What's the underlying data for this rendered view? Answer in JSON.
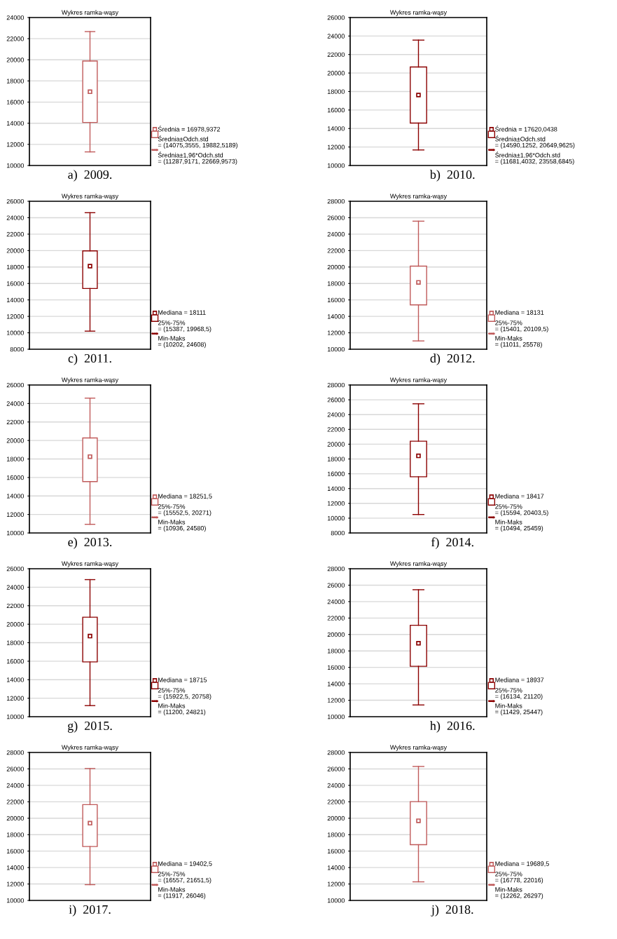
{
  "chart_data": [
    {
      "type": "box",
      "title": "Wykres ramka-wąsy",
      "categories": [
        null
      ],
      "color": "#c05a5a",
      "boxes": [
        {
          "low": 11287.9171,
          "q1": 14075.3555,
          "mean": 16978.9372,
          "q3": 19882.5189,
          "high": 22669.9573
        }
      ],
      "ylim": [
        10000,
        24000
      ],
      "yticks": [
        10000,
        12000,
        14000,
        16000,
        18000,
        20000,
        22000,
        24000
      ],
      "grid": "y",
      "tick_labels": "y",
      "annotations": [
        "Średnia = 16978,9372",
        "Średnia±Odch.std\n= (14075,3555, 19882,5189)",
        "Średnia±1,96*Odch.std\n= (11287,9171, 22669,9573)",
        "a)  2009."
      ]
    },
    {
      "type": "box",
      "title": "Wykres ramka-wąsy",
      "categories": [
        null
      ],
      "color": "#8b0000",
      "boxes": [
        {
          "low": 11681.4032,
          "q1": 14590.1252,
          "mean": 17620.0438,
          "q3": 20649.9625,
          "high": 23558.6845
        }
      ],
      "ylim": [
        10000,
        26000
      ],
      "yticks": [
        10000,
        12000,
        14000,
        16000,
        18000,
        20000,
        22000,
        24000,
        26000
      ],
      "grid": "y",
      "tick_labels": "y",
      "annotations": [
        "Średnia = 17620,0438",
        "Średnia±Odch.std\n= (14590,1252, 20649,9625)",
        "Średnia±1,96*Odch.std\n= (11681,4032, 23558,6845)",
        "b)  2010."
      ]
    },
    {
      "type": "box",
      "title": "Wykres ramka-wąsy",
      "categories": [
        null
      ],
      "color": "#8b0000",
      "boxes": [
        {
          "low": 10202,
          "q1": 15387,
          "median": 18111,
          "q3": 19968.5,
          "high": 24608
        }
      ],
      "ylim": [
        8000,
        26000
      ],
      "yticks": [
        8000,
        10000,
        12000,
        14000,
        16000,
        18000,
        20000,
        22000,
        24000,
        26000
      ],
      "grid": "y",
      "tick_labels": "y",
      "annotations": [
        "Mediana = 18111",
        "25%-75%\n= (15387, 19968,5)",
        "Min-Maks\n= (10202, 24608)",
        "c)  2011."
      ]
    },
    {
      "type": "box",
      "title": "Wykres ramka-wąsy",
      "categories": [
        null
      ],
      "color": "#c05a5a",
      "boxes": [
        {
          "low": 11011,
          "q1": 15401,
          "median": 18131,
          "q3": 20109.5,
          "high": 25578
        }
      ],
      "ylim": [
        10000,
        28000
      ],
      "yticks": [
        10000,
        12000,
        14000,
        16000,
        18000,
        20000,
        22000,
        24000,
        26000,
        28000
      ],
      "grid": "y",
      "tick_labels": "y",
      "annotations": [
        "Mediana = 18131",
        "25%-75%\n= (15401, 20109,5)",
        "Min-Maks\n= (11011, 25578)",
        "d)  2012."
      ]
    },
    {
      "type": "box",
      "title": "Wykres ramka-wąsy",
      "categories": [
        null
      ],
      "color": "#c05a5a",
      "boxes": [
        {
          "low": 10936,
          "q1": 15552.5,
          "median": 18251.5,
          "q3": 20271,
          "high": 24580
        }
      ],
      "ylim": [
        10000,
        26000
      ],
      "yticks": [
        10000,
        12000,
        14000,
        16000,
        18000,
        20000,
        22000,
        24000,
        26000
      ],
      "grid": "y",
      "tick_labels": "y",
      "annotations": [
        "Mediana = 18251,5",
        "25%-75%\n= (15552,5, 20271)",
        "Min-Maks\n= (10936, 24580)",
        "e)  2013."
      ]
    },
    {
      "type": "box",
      "title": "Wykres ramka-wąsy",
      "categories": [
        null
      ],
      "color": "#8b0000",
      "boxes": [
        {
          "low": 10494,
          "q1": 15594,
          "median": 18417,
          "q3": 20403.5,
          "high": 25459
        }
      ],
      "ylim": [
        8000,
        28000
      ],
      "yticks": [
        8000,
        10000,
        12000,
        14000,
        16000,
        18000,
        20000,
        22000,
        24000,
        26000,
        28000
      ],
      "grid": "y",
      "tick_labels": "y",
      "annotations": [
        "Mediana = 18417",
        "25%-75%\n= (15594, 20403,5)",
        "Min-Maks\n= (10494, 25459)",
        "f)  2014."
      ]
    },
    {
      "type": "box",
      "title": "Wykres ramka-wąsy",
      "categories": [
        null
      ],
      "color": "#8b0000",
      "boxes": [
        {
          "low": 11200,
          "q1": 15922.5,
          "median": 18715,
          "q3": 20758,
          "high": 24821
        }
      ],
      "ylim": [
        10000,
        26000
      ],
      "yticks": [
        10000,
        12000,
        14000,
        16000,
        18000,
        20000,
        22000,
        24000,
        26000
      ],
      "grid": "y",
      "tick_labels": "y",
      "annotations": [
        "Mediana = 18715",
        "25%-75%\n= (15922,5, 20758)",
        "Min-Maks\n= (11200, 24821)",
        "g)  2015."
      ]
    },
    {
      "type": "box",
      "title": "Wykres ramka-wąsy",
      "categories": [
        null
      ],
      "color": "#8b0000",
      "boxes": [
        {
          "low": 11429,
          "q1": 16134,
          "median": 18937,
          "q3": 21120,
          "high": 25447
        }
      ],
      "ylim": [
        10000,
        28000
      ],
      "yticks": [
        10000,
        12000,
        14000,
        16000,
        18000,
        20000,
        22000,
        24000,
        26000,
        28000
      ],
      "grid": "y",
      "tick_labels": "y",
      "annotations": [
        "Mediana = 18937",
        "25%-75%\n= (16134, 21120)",
        "Min-Maks\n= (11429, 25447)",
        "h)  2016."
      ]
    },
    {
      "type": "box",
      "title": "Wykres ramka-wąsy",
      "categories": [
        null
      ],
      "color": "#c05a5a",
      "boxes": [
        {
          "low": 11917,
          "q1": 16557,
          "median": 19402.5,
          "q3": 21651.5,
          "high": 26046
        }
      ],
      "ylim": [
        10000,
        28000
      ],
      "yticks": [
        10000,
        12000,
        14000,
        16000,
        18000,
        20000,
        22000,
        24000,
        26000,
        28000
      ],
      "grid": "y",
      "tick_labels": "y",
      "annotations": [
        "Mediana = 19402,5",
        "25%-75%\n= (16557, 21651,5)",
        "Min-Maks\n= (11917, 26046)",
        "i)  2017."
      ]
    },
    {
      "type": "box",
      "title": "Wykres ramka-wąsy",
      "categories": [
        null
      ],
      "color": "#c05a5a",
      "boxes": [
        {
          "low": 12262,
          "q1": 16778,
          "median": 19689.5,
          "q3": 22016,
          "high": 26297
        }
      ],
      "ylim": [
        10000,
        28000
      ],
      "yticks": [
        10000,
        12000,
        14000,
        16000,
        18000,
        20000,
        22000,
        24000,
        26000,
        28000
      ],
      "grid": "y",
      "tick_labels": "y",
      "annotations": [
        "Mediana = 19689,5",
        "25%-75%\n= (16778, 22016)",
        "Min-Maks\n= (12262, 26297)",
        "j)  2018."
      ]
    }
  ]
}
